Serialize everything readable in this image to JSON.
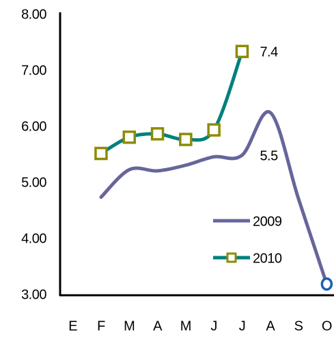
{
  "chart_data": {
    "type": "line",
    "categories": [
      "E",
      "F",
      "M",
      "A",
      "M",
      "J",
      "J",
      "A",
      "S",
      "O"
    ],
    "series": [
      {
        "name": "2009",
        "color": "#66669c",
        "marker": "last-circle",
        "marker_color": "#1a5fb4",
        "values": [
          null,
          4.75,
          5.24,
          5.22,
          5.32,
          5.47,
          5.5,
          6.26,
          4.72,
          3.2
        ],
        "value_labels": [
          null,
          null,
          null,
          null,
          null,
          null,
          "5.5",
          null,
          null,
          null
        ]
      },
      {
        "name": "2010",
        "color": "#00807c",
        "marker": "square",
        "marker_color": "#8c8c00",
        "values": [
          null,
          5.53,
          5.82,
          5.88,
          5.78,
          5.95,
          7.35,
          null,
          null,
          null
        ],
        "value_labels": [
          null,
          null,
          null,
          null,
          null,
          null,
          "7.4",
          null,
          null,
          null
        ]
      }
    ],
    "ylim": [
      3,
      8
    ],
    "yticks": [
      {
        "value": 3,
        "label": "3.00"
      },
      {
        "value": 4,
        "label": "4.00"
      },
      {
        "value": 5,
        "label": "5.00"
      },
      {
        "value": 6,
        "label": "6.00"
      },
      {
        "value": 7,
        "label": "7.00"
      },
      {
        "value": 8,
        "label": "8.00"
      }
    ],
    "grid": false,
    "legend": "lower-right"
  }
}
